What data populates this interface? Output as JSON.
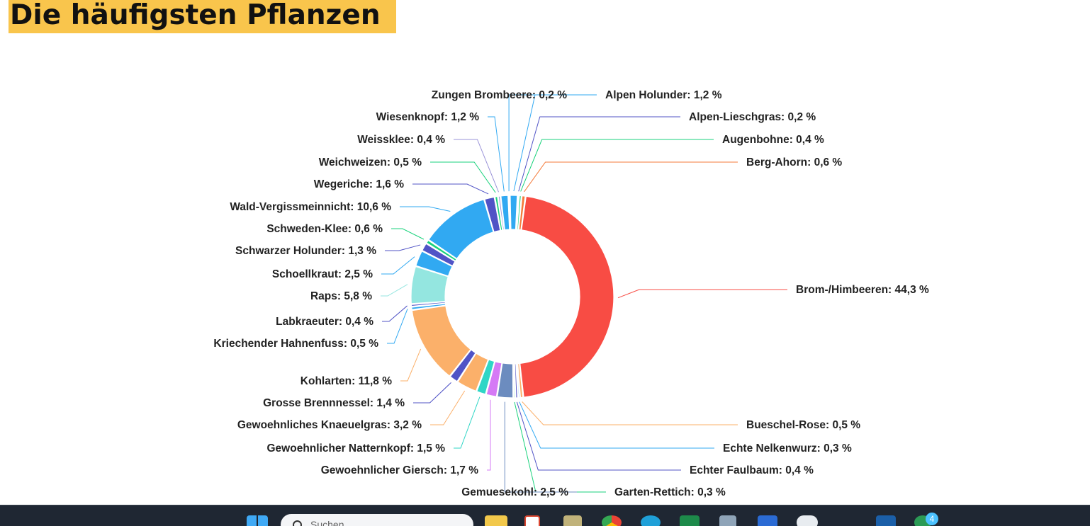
{
  "page": {
    "title": "Die häufigsten Pflanzen"
  },
  "colors": {
    "title_highlight": "#f9c54c",
    "taskbar": "#1f2733"
  },
  "chart_data": {
    "type": "pie",
    "variant": "donut",
    "title": "",
    "value_suffix": " %",
    "decimal_separator": ",",
    "slices": [
      {
        "label": "Brom-/Himbeeren",
        "value": 44.3,
        "color": "#f84c44",
        "side": "right"
      },
      {
        "label": "Bueschel-Rose",
        "value": 0.5,
        "color": "#fbb06a",
        "side": "right"
      },
      {
        "label": "Echte Nelkenwurz",
        "value": 0.3,
        "color": "#31a9f2",
        "side": "right"
      },
      {
        "label": "Echter Faulbaum",
        "value": 0.4,
        "color": "#5053c6",
        "side": "right"
      },
      {
        "label": "Garten-Rettich",
        "value": 0.3,
        "color": "#19d27c",
        "side": "right"
      },
      {
        "label": "Gemuesekohl",
        "value": 2.5,
        "color": "#6c8cbf",
        "side": "left"
      },
      {
        "label": "Gewoehnlicher Giersch",
        "value": 1.7,
        "color": "#d57af5",
        "side": "left"
      },
      {
        "label": "Gewoehnlicher Natternkopf",
        "value": 1.5,
        "color": "#2fd6c6",
        "side": "left"
      },
      {
        "label": "Gewoehnliches Knaeuelgras",
        "value": 3.2,
        "color": "#fbb06a",
        "side": "left"
      },
      {
        "label": "Grosse Brennnessel",
        "value": 1.4,
        "color": "#5053c6",
        "side": "left"
      },
      {
        "label": "Kohlarten",
        "value": 11.8,
        "color": "#fbb06a",
        "side": "left"
      },
      {
        "label": "Kriechender Hahnenfuss",
        "value": 0.5,
        "color": "#31a9f2",
        "side": "left"
      },
      {
        "label": "Labkraeuter",
        "value": 0.4,
        "color": "#5053c6",
        "side": "left"
      },
      {
        "label": "Raps",
        "value": 5.8,
        "color": "#94e6e0",
        "side": "left"
      },
      {
        "label": "Schoellkraut",
        "value": 2.5,
        "color": "#31a9f2",
        "side": "left"
      },
      {
        "label": "Schwarzer Holunder",
        "value": 1.3,
        "color": "#5053c6",
        "side": "left"
      },
      {
        "label": "Schweden-Klee",
        "value": 0.6,
        "color": "#19d27c",
        "side": "left"
      },
      {
        "label": "Wald-Vergissmeinnicht",
        "value": 10.6,
        "color": "#31a9f2",
        "side": "left"
      },
      {
        "label": "Wegeriche",
        "value": 1.6,
        "color": "#5053c6",
        "side": "left"
      },
      {
        "label": "Weichweizen",
        "value": 0.5,
        "color": "#19d27c",
        "side": "left"
      },
      {
        "label": "Weissklee",
        "value": 0.4,
        "color": "#9a93d8",
        "side": "left"
      },
      {
        "label": "Wiesenknopf",
        "value": 1.2,
        "color": "#31a9f2",
        "side": "left"
      },
      {
        "label": "Zungen Brombeere",
        "value": 0.2,
        "color": "#31a9f2",
        "side": "left"
      },
      {
        "label": "Alpen Holunder",
        "value": 1.2,
        "color": "#31a9f2",
        "side": "right"
      },
      {
        "label": "Alpen-Lieschgras",
        "value": 0.2,
        "color": "#5053c6",
        "side": "right"
      },
      {
        "label": "Augenbohne",
        "value": 0.4,
        "color": "#19d27c",
        "side": "right"
      },
      {
        "label": "Berg-Ahorn",
        "value": 0.6,
        "color": "#f47a3a",
        "side": "right"
      }
    ]
  },
  "taskbar": {
    "search_placeholder": "Suchen",
    "notification_count": "4",
    "icons": [
      "windows-start-icon",
      "search-icon",
      "file-explorer-icon",
      "calendar-app-icon",
      "pen-icon",
      "chrome-icon",
      "edge-icon",
      "excel-icon",
      "calculator-icon",
      "word-icon",
      "cloud-icon",
      "mail-icon",
      "app-icon"
    ]
  }
}
